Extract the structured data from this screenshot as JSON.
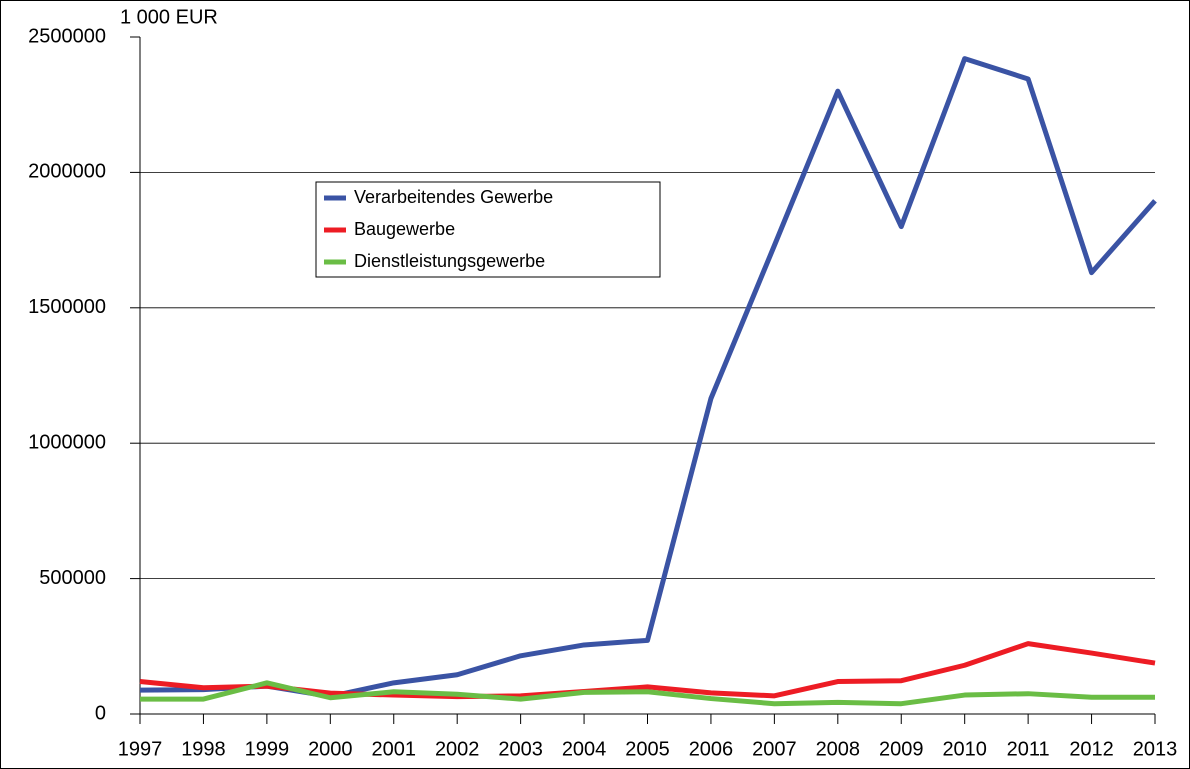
{
  "chart_data": {
    "type": "line",
    "y_axis_label": "1 000 EUR",
    "categories": [
      "1997",
      "1998",
      "1999",
      "2000",
      "2001",
      "2002",
      "2003",
      "2004",
      "2005",
      "2006",
      "2007",
      "2008",
      "2009",
      "2010",
      "2011",
      "2012",
      "2013"
    ],
    "series": [
      {
        "name": "Verarbeitendes Gewerbe",
        "color": "#3a53a4",
        "values": [
          88000,
          90000,
          103000,
          65000,
          115000,
          145000,
          215000,
          255000,
          272000,
          1165000,
          1730000,
          2300000,
          1800000,
          2420000,
          2345000,
          1630000,
          1895000
        ]
      },
      {
        "name": "Baugewerbe",
        "color": "#ed1c24",
        "values": [
          120000,
          97000,
          103000,
          77000,
          70000,
          64000,
          67000,
          83000,
          100000,
          78000,
          67000,
          120000,
          123000,
          180000,
          260000,
          225000,
          188000
        ]
      },
      {
        "name": "Dienstleistungsgewerbe",
        "color": "#6abd45",
        "values": [
          55000,
          55000,
          115000,
          60000,
          82000,
          73000,
          55000,
          80000,
          82000,
          57000,
          38000,
          43000,
          38000,
          70000,
          75000,
          62000,
          62000
        ]
      }
    ],
    "ylim": [
      0,
      2500000
    ],
    "yticks": [
      0,
      500000,
      1000000,
      1500000,
      2000000,
      2500000
    ],
    "grid": true,
    "legend": "upper left"
  }
}
